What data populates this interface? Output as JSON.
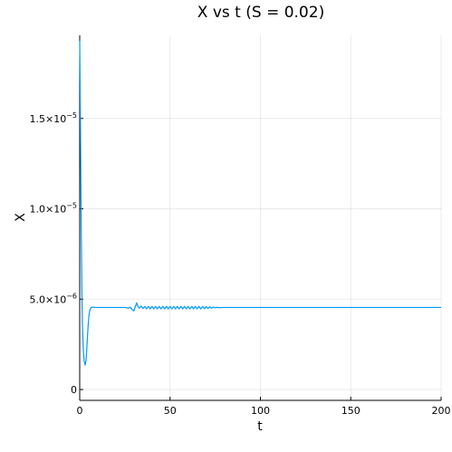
{
  "chart_data": {
    "type": "line",
    "title": "X vs t (S = 0.02)",
    "xlabel": "t",
    "ylabel": "X",
    "xlim": [
      0,
      200
    ],
    "ylim": [
      -6e-07,
      1.96e-05
    ],
    "grid": true,
    "legend": "none",
    "line_color": "#009af9",
    "x_ticks": [
      {
        "value": 0,
        "label": "0"
      },
      {
        "value": 50,
        "label": "50"
      },
      {
        "value": 100,
        "label": "100"
      },
      {
        "value": 150,
        "label": "150"
      },
      {
        "value": 200,
        "label": "200"
      }
    ],
    "y_ticks": [
      {
        "value": 0,
        "mant": "0",
        "exp": ""
      },
      {
        "value": 5e-06,
        "mant": "5.0×10",
        "exp": "−6"
      },
      {
        "value": 1e-05,
        "mant": "1.0×10",
        "exp": "−5"
      },
      {
        "value": 1.5e-05,
        "mant": "1.5×10",
        "exp": "−5"
      }
    ],
    "series": [
      {
        "x": [
          0,
          0.3,
          0.6,
          0.9,
          1.2,
          1.5,
          2.0,
          2.5,
          3.0,
          3.5,
          4.0,
          4.5,
          5.0,
          5.5,
          6.0,
          7.0,
          8.0,
          9.0,
          10.0,
          12.0,
          15.0,
          20.0,
          25.0,
          27.0,
          28.0,
          29.0,
          30.0,
          30.8,
          31.5,
          32.2,
          33.0,
          34.0,
          35.0,
          36.0,
          37.0,
          38.0,
          39.0,
          40.0,
          41.0,
          42.0,
          43.0,
          44.0,
          45.0,
          46.0,
          47.0,
          48.0,
          49.0,
          50.0,
          51.0,
          52.0,
          53.0,
          54.0,
          55.0,
          56.0,
          57.0,
          58.0,
          59.0,
          60.0,
          61.0,
          62.0,
          63.0,
          64.0,
          65.0,
          66.0,
          67.0,
          68.0,
          69.0,
          70.0,
          71.0,
          72.0,
          73.0,
          74.0,
          75.0,
          76.0,
          77.0,
          80.0,
          100.0,
          150.0,
          200.0
        ],
        "y": [
          1.93e-05,
          1.6e-05,
          1.2e-05,
          8.5e-06,
          5.5e-06,
          3.6e-06,
          2.2e-06,
          1.55e-06,
          1.35e-06,
          1.6e-06,
          2.4e-06,
          3.3e-06,
          4e-06,
          4.35e-06,
          4.5e-06,
          4.56e-06,
          4.55e-06,
          4.54e-06,
          4.54e-06,
          4.54e-06,
          4.54e-06,
          4.54e-06,
          4.54e-06,
          4.5e-06,
          4.56e-06,
          4.42e-06,
          4.35e-06,
          4.6e-06,
          4.8e-06,
          4.6e-06,
          4.5e-06,
          4.62e-06,
          4.48e-06,
          4.6e-06,
          4.46e-06,
          4.6e-06,
          4.46e-06,
          4.6e-06,
          4.46e-06,
          4.6e-06,
          4.46e-06,
          4.6e-06,
          4.46e-06,
          4.6e-06,
          4.46e-06,
          4.6e-06,
          4.46e-06,
          4.6e-06,
          4.46e-06,
          4.6e-06,
          4.46e-06,
          4.6e-06,
          4.46e-06,
          4.6e-06,
          4.46e-06,
          4.6e-06,
          4.46e-06,
          4.6e-06,
          4.46e-06,
          4.6e-06,
          4.46e-06,
          4.6e-06,
          4.46e-06,
          4.6e-06,
          4.46e-06,
          4.6e-06,
          4.47e-06,
          4.59e-06,
          4.48e-06,
          4.58e-06,
          4.5e-06,
          4.56e-06,
          4.52e-06,
          4.55e-06,
          4.53e-06,
          4.54e-06,
          4.54e-06,
          4.54e-06,
          4.54e-06
        ]
      }
    ]
  }
}
